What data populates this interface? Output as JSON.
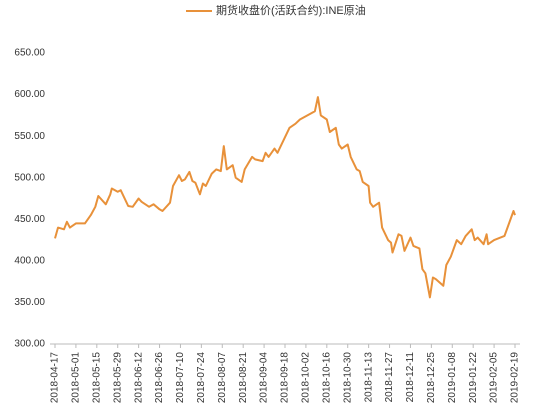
{
  "chart_data": {
    "type": "line",
    "x": [
      "2018-04-17",
      "2018-04-19",
      "2018-04-23",
      "2018-04-25",
      "2018-04-27",
      "2018-05-01",
      "2018-05-07",
      "2018-05-11",
      "2018-05-14",
      "2018-05-16",
      "2018-05-21",
      "2018-05-24",
      "2018-05-25",
      "2018-05-29",
      "2018-05-31",
      "2018-06-05",
      "2018-06-08",
      "2018-06-12",
      "2018-06-14",
      "2018-06-19",
      "2018-06-22",
      "2018-06-26",
      "2018-06-28",
      "2018-07-03",
      "2018-07-05",
      "2018-07-09",
      "2018-07-11",
      "2018-07-13",
      "2018-07-16",
      "2018-07-18",
      "2018-07-20",
      "2018-07-23",
      "2018-07-25",
      "2018-07-27",
      "2018-07-31",
      "2018-08-03",
      "2018-08-06",
      "2018-08-08",
      "2018-08-10",
      "2018-08-14",
      "2018-08-16",
      "2018-08-20",
      "2018-08-22",
      "2018-08-27",
      "2018-08-29",
      "2018-09-03",
      "2018-09-05",
      "2018-09-07",
      "2018-09-11",
      "2018-09-13",
      "2018-09-17",
      "2018-09-21",
      "2018-09-25",
      "2018-09-28",
      "2018-10-08",
      "2018-10-10",
      "2018-10-12",
      "2018-10-16",
      "2018-10-18",
      "2018-10-22",
      "2018-10-24",
      "2018-10-26",
      "2018-10-30",
      "2018-11-01",
      "2018-11-05",
      "2018-11-07",
      "2018-11-09",
      "2018-11-13",
      "2018-11-14",
      "2018-11-16",
      "2018-11-20",
      "2018-11-22",
      "2018-11-26",
      "2018-11-28",
      "2018-11-29",
      "2018-12-03",
      "2018-12-05",
      "2018-12-07",
      "2018-12-11",
      "2018-12-13",
      "2018-12-17",
      "2018-12-19",
      "2018-12-21",
      "2018-12-24",
      "2018-12-26",
      "2018-12-28",
      "2019-01-02",
      "2019-01-04",
      "2019-01-07",
      "2019-01-09",
      "2019-01-11",
      "2019-01-14",
      "2019-01-17",
      "2019-01-21",
      "2019-01-23",
      "2019-01-25",
      "2019-01-29",
      "2019-01-31",
      "2019-02-01",
      "2019-02-05",
      "2019-02-12",
      "2019-02-14",
      "2019-02-18",
      "2019-02-19"
    ],
    "series": [
      {
        "name": "期货收盘价(活跃合约):INE原油",
        "color": "#e8913a",
        "values": [
          427,
          440,
          438,
          447,
          440,
          445,
          445,
          455,
          465,
          478,
          468,
          480,
          487,
          483,
          485,
          466,
          465,
          475,
          471,
          465,
          468,
          462,
          460,
          470,
          490,
          503,
          496,
          498,
          507,
          496,
          494,
          480,
          493,
          490,
          505,
          510,
          508,
          538,
          510,
          515,
          500,
          495,
          510,
          525,
          522,
          520,
          530,
          525,
          535,
          530,
          545,
          560,
          565,
          570,
          580,
          597,
          575,
          570,
          555,
          560,
          540,
          535,
          540,
          525,
          510,
          508,
          495,
          490,
          470,
          465,
          470,
          440,
          425,
          422,
          410,
          432,
          430,
          412,
          428,
          418,
          415,
          390,
          385,
          356,
          380,
          378,
          370,
          395,
          405,
          415,
          425,
          420,
          430,
          438,
          425,
          428,
          420,
          432,
          420,
          425,
          430,
          440,
          460,
          455
        ]
      }
    ],
    "xticks": [
      "2018-04-17",
      "2018-05-01",
      "2018-05-15",
      "2018-05-29",
      "2018-06-12",
      "2018-06-26",
      "2018-07-10",
      "2018-07-24",
      "2018-08-07",
      "2018-08-21",
      "2018-09-04",
      "2018-09-18",
      "2018-10-02",
      "2018-10-16",
      "2018-10-30",
      "2018-11-13",
      "2018-11-27",
      "2018-12-11",
      "2018-12-25",
      "2019-01-08",
      "2019-01-22",
      "2019-02-05",
      "2019-02-19"
    ],
    "ylim": [
      300,
      650
    ],
    "yticks": [
      {
        "value": 300,
        "label": "300.00"
      },
      {
        "value": 350,
        "label": "350.00"
      },
      {
        "value": 400,
        "label": "400.00"
      },
      {
        "value": 450,
        "label": "450.00"
      },
      {
        "value": 500,
        "label": "500.00"
      },
      {
        "value": 550,
        "label": "550.00"
      },
      {
        "value": 600,
        "label": "600.00"
      },
      {
        "value": 650,
        "label": "650.00"
      }
    ],
    "grid": false
  }
}
